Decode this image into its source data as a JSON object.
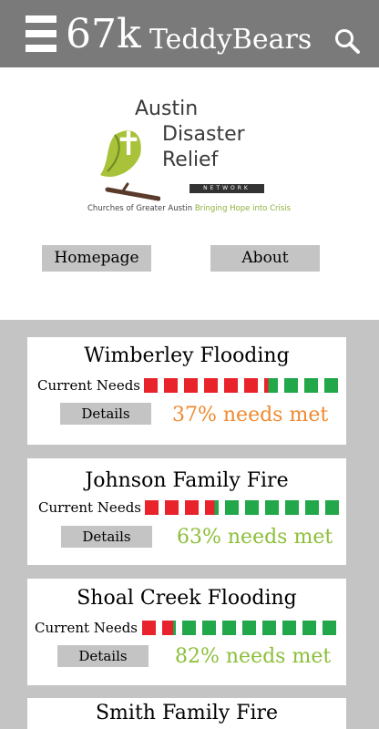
{
  "topbar": {
    "count": "67k",
    "brand": "TeddyBears",
    "menu_icon": "hamburger-menu-icon",
    "search_icon": "search-icon",
    "bg_color": "#7a7a7a"
  },
  "logo": {
    "line1": "Austin",
    "line2": "Disaster",
    "line3": "Relief",
    "network": "NETWORK",
    "tagline_a": "Churches of Greater Austin",
    "tagline_b": "Bringing Hope into Crisis"
  },
  "nav": {
    "homepage_label": "Homepage",
    "about_label": "About"
  },
  "needs_label": "Current Needs",
  "details_label": "Details",
  "colors": {
    "unmet": "#e8232b",
    "met": "#22a74a",
    "pct_orange": "#f08a30",
    "pct_green": "#8cbf3a"
  },
  "cards": [
    {
      "title": "Wimberley Flooding",
      "met_fraction": 0.37,
      "pct_text": "37% needs met",
      "pct_color": "#f08a30"
    },
    {
      "title": "Johnson Family Fire",
      "met_fraction": 0.63,
      "pct_text": "63% needs met",
      "pct_color": "#8cbf3a"
    },
    {
      "title": "Shoal Creek Flooding",
      "met_fraction": 0.82,
      "pct_text": "82% needs met",
      "pct_color": "#8cbf3a"
    },
    {
      "title": "Smith Family Fire"
    }
  ]
}
